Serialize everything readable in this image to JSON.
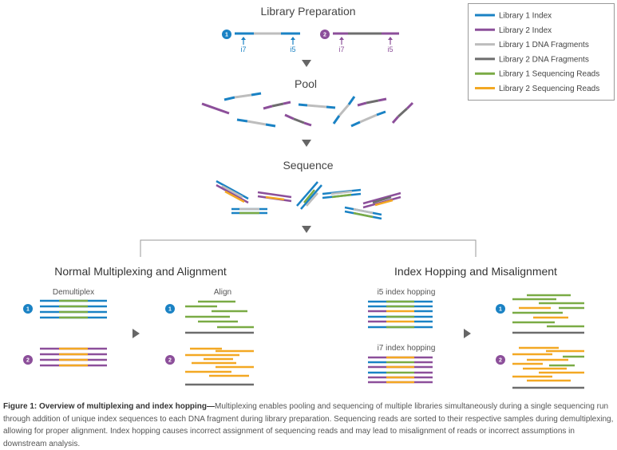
{
  "colors": {
    "lib1_index": "#1a82c4",
    "lib2_index": "#8c4f9a",
    "lib1_fragment": "#bdbdbd",
    "lib2_fragment": "#6d6d6d",
    "lib1_reads": "#7aab45",
    "lib2_reads": "#f3a823",
    "arrow": "#666666",
    "bracket": "#999999"
  },
  "stages": {
    "library_preparation": "Library Preparation",
    "pool": "Pool",
    "sequence": "Sequence"
  },
  "library_labels": {
    "lib1": "1",
    "lib2": "2",
    "i7": "i7",
    "i5": "i5"
  },
  "sections": {
    "normal": {
      "title": "Normal Multiplexing and Alignment",
      "demultiplex": "Demultiplex",
      "align": "Align"
    },
    "hopping": {
      "title": "Index Hopping and Misalignment",
      "i5": "i5 index hopping",
      "i7": "i7 index hopping"
    }
  },
  "legend": [
    {
      "key": "lib1_index",
      "label": "Library 1 Index"
    },
    {
      "key": "lib2_index",
      "label": "Library 2 Index"
    },
    {
      "key": "lib1_fragment",
      "label": "Library 1 DNA Fragments"
    },
    {
      "key": "lib2_fragment",
      "label": "Library 2 DNA Fragments"
    },
    {
      "key": "lib1_reads",
      "label": "Library 1 Sequencing Reads"
    },
    {
      "key": "lib2_reads",
      "label": "Library 2 Sequencing Reads"
    }
  ],
  "caption": {
    "lead": "Figure 1: Overview of multiplexing and index hopping—",
    "body": "Multiplexing enables pooling and sequencing of multiple libraries simultaneously during a single sequencing run through addition of unique index sequences to each DNA fragment during library preparation. Sequencing reads are sorted to their respective samples during demultiplexing, allowing for proper alignment. Index hopping causes incorrect assignment of sequencing reads and may lead to misalignment of reads or incorrect assumptions in downstream analysis."
  }
}
